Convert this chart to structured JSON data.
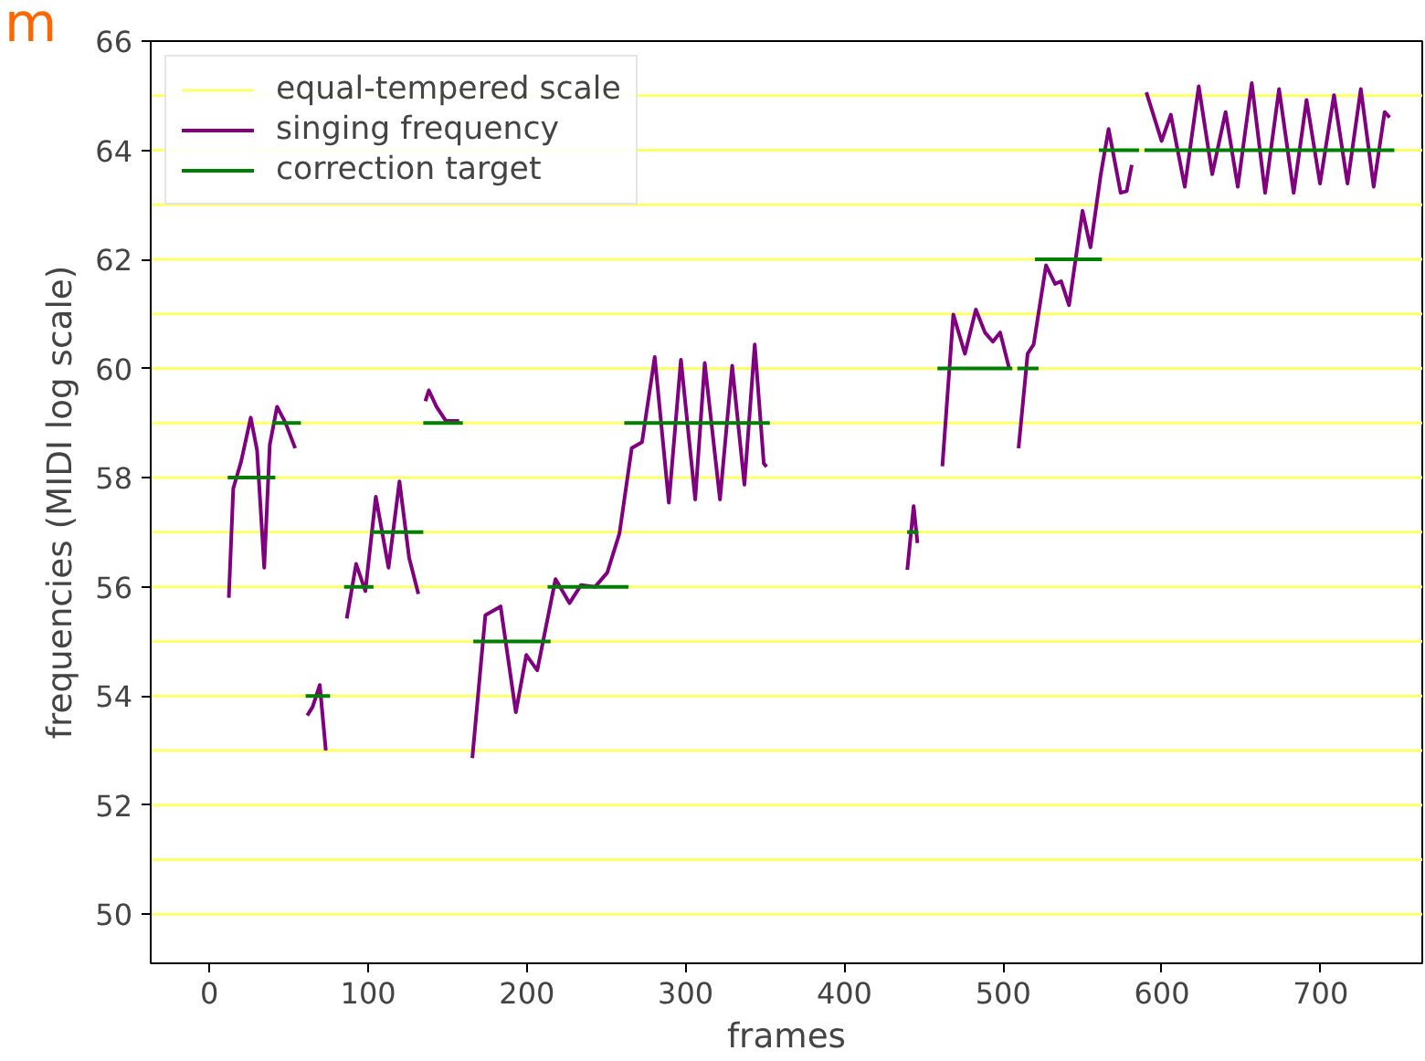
{
  "chart_data": {
    "type": "line",
    "xlabel": "frames",
    "ylabel": "frequencies (MIDI log scale)",
    "annotations": [
      "m"
    ],
    "xlim": [
      -37,
      764
    ],
    "ylim": [
      49.1,
      66
    ],
    "xticks": [
      0,
      100,
      200,
      300,
      400,
      500,
      600,
      700
    ],
    "yticks": [
      50,
      52,
      54,
      56,
      58,
      60,
      62,
      64,
      66
    ],
    "grid": false,
    "legend": "top left",
    "marker": "none",
    "line_style": "solid",
    "ref_lines": [
      {
        "axis": "y",
        "value": 50,
        "label": "equal-tempered scale",
        "color": "#ffff66"
      },
      {
        "axis": "y",
        "value": 51,
        "color": "#ffff66"
      },
      {
        "axis": "y",
        "value": 52,
        "color": "#ffff66"
      },
      {
        "axis": "y",
        "value": 53,
        "color": "#ffff66"
      },
      {
        "axis": "y",
        "value": 54,
        "color": "#ffff66"
      },
      {
        "axis": "y",
        "value": 55,
        "color": "#ffff66"
      },
      {
        "axis": "y",
        "value": 56,
        "color": "#ffff66"
      },
      {
        "axis": "y",
        "value": 57,
        "color": "#ffff66"
      },
      {
        "axis": "y",
        "value": 58,
        "color": "#ffff66"
      },
      {
        "axis": "y",
        "value": 59,
        "color": "#ffff66"
      },
      {
        "axis": "y",
        "value": 60,
        "color": "#ffff66"
      },
      {
        "axis": "y",
        "value": 61,
        "color": "#ffff66"
      },
      {
        "axis": "y",
        "value": 62,
        "color": "#ffff66"
      },
      {
        "axis": "y",
        "value": 63,
        "color": "#ffff66"
      },
      {
        "axis": "y",
        "value": 64,
        "color": "#ffff66"
      },
      {
        "axis": "y",
        "value": 65,
        "color": "#ffff66"
      }
    ],
    "series": [
      {
        "name": "singing frequency",
        "color": "#800080",
        "x": [
          12.2,
          15,
          20,
          26,
          30,
          34.5,
          38,
          42.6,
          48,
          54,
          null,
          61.6,
          65,
          69.5,
          73.3,
          null,
          86.5,
          92.4,
          98.2,
          104.8,
          112.8,
          119.7,
          125.8,
          131.6,
          null,
          136,
          138.2,
          143,
          148.9,
          157.3,
          null,
          165.6,
          173.8,
          183.4,
          193,
          199.6,
          206.5,
          218,
          226.8,
          234,
          243,
          250.6,
          258.3,
          266,
          272.5,
          280.5,
          289.4,
          297,
          306,
          312,
          321.6,
          329.3,
          337,
          343.5,
          349.2,
          351,
          null,
          439.6,
          443.6,
          446,
          null,
          461.7,
          468.6,
          475.9,
          482.8,
          488.5,
          493.5,
          498.1,
          503.9,
          null,
          509.7,
          515.4,
          519.2,
          527,
          532.7,
          536.5,
          541.5,
          550,
          555,
          561.5,
          566.4,
          574,
          577.8,
          581,
          null,
          590.2,
          599.8,
          605.6,
          614.4,
          623.2,
          631.7,
          640.1,
          647.8,
          656.6,
          665,
          673.8,
          683,
          691.1,
          699.6,
          708.4,
          716.9,
          725.3,
          733.4,
          740.3,
          743.5
        ],
        "values": [
          55.8,
          57.8,
          58.3,
          59.1,
          58.5,
          56.35,
          58.6,
          59.3,
          59.0,
          58.54,
          null,
          53.64,
          53.8,
          54.2,
          53.0,
          null,
          55.42,
          56.42,
          55.92,
          57.65,
          56.35,
          57.93,
          56.53,
          55.87,
          null,
          59.4,
          59.6,
          59.3,
          59.04,
          59.04,
          null,
          52.86,
          55.48,
          55.64,
          53.7,
          54.75,
          54.47,
          56.14,
          55.7,
          56.03,
          56.0,
          56.26,
          56.98,
          58.54,
          58.65,
          60.21,
          57.54,
          60.16,
          57.6,
          60.1,
          57.6,
          60.05,
          57.87,
          60.44,
          58.26,
          58.2,
          null,
          56.31,
          57.48,
          56.8,
          null,
          58.21,
          60.99,
          60.27,
          61.08,
          60.66,
          60.49,
          60.66,
          59.99,
          null,
          58.54,
          60.27,
          60.44,
          61.89,
          61.55,
          61.6,
          61.16,
          62.89,
          62.22,
          63.56,
          64.39,
          63.22,
          63.25,
          63.73,
          null,
          65.06,
          64.17,
          64.65,
          63.33,
          65.17,
          63.56,
          64.7,
          63.33,
          65.23,
          63.22,
          65.12,
          63.22,
          64.92,
          63.39,
          65.01,
          63.39,
          65.12,
          63.33,
          64.7,
          64.6
        ]
      },
      {
        "name": "correction target",
        "color": "#008000",
        "x": [
          11.5,
          41.5,
          null,
          39.5,
          57.6,
          null,
          60.6,
          76,
          null,
          84.8,
          103.3,
          null,
          101.7,
          134.7,
          null,
          134.7,
          159.6,
          null,
          166.2,
          214.9,
          null,
          213,
          264,
          null,
          261.3,
          353,
          null,
          439.5,
          446.6,
          null,
          458.6,
          505.8,
          null,
          508.9,
          522.3,
          null,
          520,
          562.2,
          null,
          560.3,
          585.6,
          null,
          589,
          746.4
        ],
        "values": [
          58,
          58,
          null,
          59,
          59,
          null,
          54,
          54,
          null,
          56,
          56,
          null,
          57,
          57,
          null,
          59,
          59,
          null,
          55,
          55,
          null,
          56,
          56,
          null,
          59,
          59,
          null,
          57,
          57,
          null,
          60,
          60,
          null,
          60,
          60,
          null,
          62,
          62,
          null,
          64,
          64,
          null,
          64,
          64
        ]
      }
    ]
  }
}
